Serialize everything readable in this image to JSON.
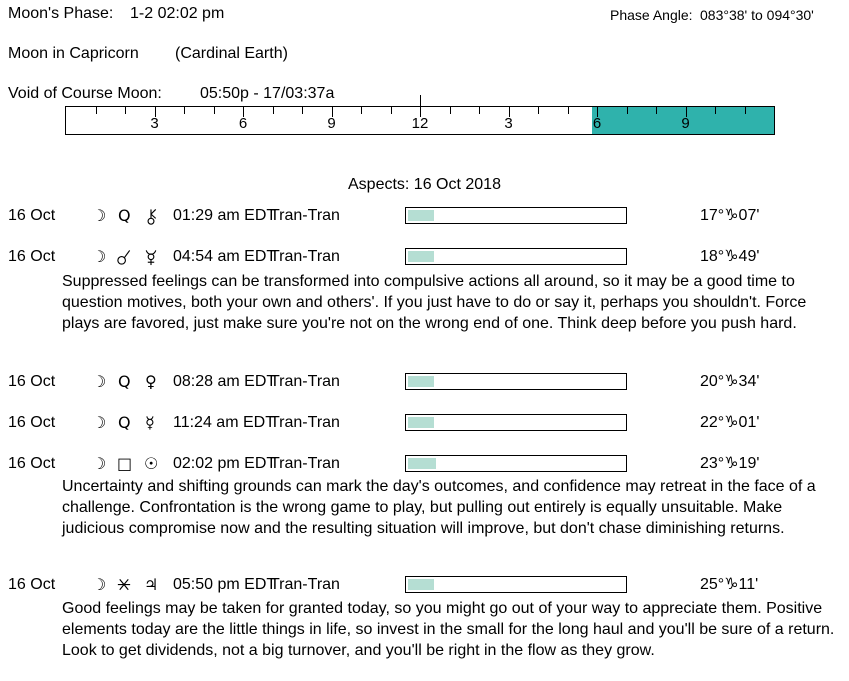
{
  "header": {
    "moons_phase_label": "Moon's Phase:",
    "moons_phase_value": "1-2 02:02 pm",
    "phase_angle_label": "Phase Angle:",
    "phase_angle_value": "083°38' to 094°30'",
    "moon_sign": "Moon in Capricorn",
    "moon_sign_mode": "(Cardinal Earth)",
    "voc_label": "Void of Course Moon:",
    "voc_value": "05:50p - 17/03:37a"
  },
  "ruler": {
    "hours_total": 24,
    "label_every": 3,
    "hour_labels": [
      "3",
      "6",
      "9",
      "12",
      "3",
      "6",
      "9"
    ],
    "highlight_start_hour": 17.83,
    "highlight_end_hour": 24,
    "highlight_color": "#2fb2ac",
    "marker_hour": 12
  },
  "glyphs": {
    "moon": "☽",
    "quintile": "Q",
    "square": "□",
    "sun": "☉",
    "venus": "♀",
    "mercury": "☿",
    "jupiter": "♃"
  },
  "aspects": {
    "title": "Aspects: 16 Oct 2018",
    "bar_fill_color": "#b5ded3",
    "rows": [
      {
        "date": "16 Oct",
        "planet1": "moon",
        "aspect": "quintile",
        "planet2": "chiron",
        "time": "01:29 am EDT",
        "type": "Tran-Tran",
        "position": "17°♑07'",
        "bar_percent": 12,
        "description": ""
      },
      {
        "date": "16 Oct",
        "planet1": "moon",
        "aspect": "conjunction",
        "planet2": "pluto",
        "time": "04:54 am EDT",
        "type": "Tran-Tran",
        "position": "18°♑49'",
        "bar_percent": 12,
        "description": "Suppressed feelings can be transformed into compulsive actions all around, so it may be a good time to question motives, both your own and others'. If you just have to do or say it, perhaps you shouldn't. Force plays are favored, just make sure you're not on the wrong end of one. Think deep before you push hard."
      },
      {
        "date": "16 Oct",
        "planet1": "moon",
        "aspect": "quintile",
        "planet2": "venus",
        "time": "08:28 am EDT",
        "type": "Tran-Tran",
        "position": "20°♑34'",
        "bar_percent": 12,
        "description": ""
      },
      {
        "date": "16 Oct",
        "planet1": "moon",
        "aspect": "quintile",
        "planet2": "mercury",
        "time": "11:24 am EDT",
        "type": "Tran-Tran",
        "position": "22°♑01'",
        "bar_percent": 12,
        "description": ""
      },
      {
        "date": "16 Oct",
        "planet1": "moon",
        "aspect": "square",
        "planet2": "sun",
        "time": "02:02 pm EDT",
        "type": "Tran-Tran",
        "position": "23°♑19'",
        "bar_percent": 13,
        "description": "Uncertainty and shifting grounds can mark the day's outcomes, and confidence may retreat in the face of a challenge. Confrontation is the wrong game to play, but pulling out entirely is equally unsuitable. Make judicious compromise now and the resulting situation will improve, but don't chase diminishing returns."
      },
      {
        "date": "16 Oct",
        "planet1": "moon",
        "aspect": "sextile",
        "planet2": "jupiter",
        "time": "05:50 pm EDT",
        "type": "Tran-Tran",
        "position": "25°♑11'",
        "bar_percent": 12,
        "description": "Good feelings may be taken for granted today, so you might go out of your way to appreciate them. Positive elements today are the little things in life, so invest in the small for the long haul and you'll be sure of a return. Look to get dividends, not a big turnover, and you'll be right in the flow as they grow."
      }
    ]
  }
}
